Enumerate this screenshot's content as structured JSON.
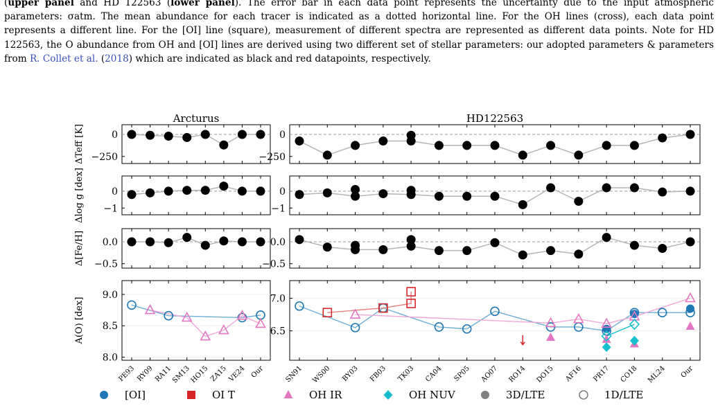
{
  "caption": {
    "lead_bold_1": "upper panel",
    "lead_text_1": " and HD 122563 (",
    "lead_bold_2": "lower panel",
    "lead_text_2": "). The error bar in each data point represents the uncertainty due to the input atmospheric parameters: σatm. The mean abundance for each tracer is indicated as a dotted horizontal line. For the OH lines (cross), each data point represents a different line. For the [OI] line (square), measurement of different spectra are represented as different data points. Note for HD 122563, the O abundance from OH and [OI] lines are derived using two different set of stellar parameters: our adopted parameters & parameters from ",
    "cite_author": "R. Collet et al.",
    "cite_paren_open": " (",
    "cite_year": "2018",
    "cite_paren_close": ")",
    "tail_text": " which are indicated as black and red datapoints, respectively."
  },
  "figure": {
    "panel_titles": [
      "Arcturus",
      "HD122563"
    ],
    "ylabels": [
      "ΔTeff [K]",
      "Δlog g [dex]",
      "Δ[Fe/H]",
      "A(O) [dex]"
    ],
    "left_categories": [
      "PE93",
      "RY09",
      "RA11",
      "SM13",
      "HO15",
      "ZA15",
      "VE24",
      "Our"
    ],
    "right_categories": [
      "SN91",
      "WS00",
      "BY03",
      "FB03",
      "TK03",
      "CA04",
      "SP05",
      "AO07",
      "RO14",
      "DO15",
      "AF16",
      "PR17",
      "CO18",
      "ML24",
      "Our"
    ],
    "yticks": {
      "teff": [
        "0",
        "−250"
      ],
      "logg": [
        "0",
        "−1"
      ],
      "feh": [
        "0.0",
        "−0.5"
      ],
      "left_abund": [
        "9.0",
        "8.5",
        "8.0"
      ],
      "right_abund": [
        "7.0",
        "6.5"
      ]
    },
    "legend": [
      {
        "label": "[OI]",
        "symbol": "circle-filled",
        "color": "#1f77b4"
      },
      {
        "label": "OI T",
        "symbol": "square-filled",
        "color": "#d62728"
      },
      {
        "label": "OH IR",
        "symbol": "triangle-filled",
        "color": "#e377c2"
      },
      {
        "label": "OH NUV",
        "symbol": "diamond-filled",
        "color": "#17becf"
      },
      {
        "label": "3D/LTE",
        "symbol": "circle-filled",
        "color": "#808080"
      },
      {
        "label": "1D/LTE",
        "symbol": "circle-open",
        "color": "#808080"
      }
    ]
  },
  "chart_data": [
    {
      "type": "line",
      "panel": "Arcturus ΔTeff",
      "categories": [
        "PE93",
        "RY09",
        "RA11",
        "SM13",
        "HO15",
        "ZA15",
        "VE24",
        "Our"
      ],
      "values": [
        0,
        -10,
        -20,
        -35,
        0,
        -120,
        0,
        0
      ],
      "ylim": [
        -330,
        110
      ]
    },
    {
      "type": "line",
      "panel": "HD122563 ΔTeff",
      "categories": [
        "SN91",
        "WS00",
        "BY03",
        "FB03",
        "TK03",
        "CA04",
        "SP05",
        "AO07",
        "RO14",
        "DO15",
        "AF16",
        "PR17",
        "CO18",
        "ML24",
        "Our"
      ],
      "values": [
        -75,
        -235,
        -125,
        -75,
        -75,
        -125,
        -125,
        -125,
        -235,
        -125,
        -235,
        -125,
        -125,
        -40,
        0
      ],
      "extra_points": [
        {
          "x": "TK03",
          "y": -10
        }
      ],
      "ylim": [
        -330,
        110
      ]
    },
    {
      "type": "line",
      "panel": "Arcturus Δlog g",
      "categories": [
        "PE93",
        "RY09",
        "RA11",
        "SM13",
        "HO15",
        "ZA15",
        "VE24",
        "Our"
      ],
      "values": [
        -0.2,
        -0.1,
        0.0,
        0.05,
        0.05,
        0.3,
        0.0,
        0.0
      ],
      "ylim": [
        -1.4,
        0.9
      ]
    },
    {
      "type": "line",
      "panel": "HD122563 Δlog g",
      "categories": [
        "SN91",
        "WS00",
        "BY03",
        "FB03",
        "TK03",
        "CA04",
        "SP05",
        "AO07",
        "RO14",
        "DO15",
        "AF16",
        "PR17",
        "CO18",
        "ML24",
        "Our"
      ],
      "values": [
        -0.2,
        -0.1,
        -0.3,
        -0.15,
        -0.2,
        -0.3,
        -0.3,
        -0.3,
        -0.8,
        0.2,
        -0.6,
        0.2,
        0.2,
        -0.05,
        0.0
      ],
      "extra_points": [
        {
          "x": "BY03",
          "y": 0.1
        },
        {
          "x": "TK03",
          "y": 0.05
        }
      ],
      "ylim": [
        -1.4,
        0.9
      ]
    },
    {
      "type": "line",
      "panel": "Arcturus Δ[Fe/H]",
      "categories": [
        "PE93",
        "RY09",
        "RA11",
        "SM13",
        "HO15",
        "ZA15",
        "VE24",
        "Our"
      ],
      "values": [
        0.0,
        0.0,
        -0.02,
        0.1,
        -0.08,
        0.02,
        0.0,
        0.0
      ],
      "ylim": [
        -0.6,
        0.3
      ]
    },
    {
      "type": "line",
      "panel": "HD122563 Δ[Fe/H]",
      "categories": [
        "SN91",
        "WS00",
        "BY03",
        "FB03",
        "TK03",
        "CA04",
        "SP05",
        "AO07",
        "RO14",
        "DO15",
        "AF16",
        "PR17",
        "CO18",
        "ML24",
        "Our"
      ],
      "values": [
        0.05,
        -0.12,
        -0.18,
        -0.18,
        -0.1,
        -0.2,
        -0.2,
        -0.02,
        -0.3,
        -0.2,
        -0.28,
        0.1,
        -0.08,
        -0.15,
        0.0
      ],
      "extra_points": [
        {
          "x": "BY03",
          "y": -0.08
        },
        {
          "x": "TK03",
          "y": 0.05
        }
      ],
      "ylim": [
        -0.6,
        0.3
      ]
    },
    {
      "type": "scatter",
      "panel": "Arcturus A(O)",
      "categories": [
        "PE93",
        "RY09",
        "RA11",
        "SM13",
        "HO15",
        "ZA15",
        "VE24",
        "Our"
      ],
      "ylim": [
        7.95,
        9.22
      ],
      "series": [
        {
          "symbol": "circle-open",
          "color": "#1f77b4",
          "points": [
            {
              "x": "PE93",
              "y": 8.83
            },
            {
              "x": "RA11",
              "y": 8.66
            },
            {
              "x": "VE24",
              "y": 8.63
            },
            {
              "x": "Our",
              "y": 8.67
            }
          ]
        },
        {
          "symbol": "triangle-open",
          "color": "#e377c2",
          "points": [
            {
              "x": "RY09",
              "y": 8.75
            },
            {
              "x": "SM13",
              "y": 8.63
            },
            {
              "x": "HO15",
              "y": 8.33
            },
            {
              "x": "ZA15",
              "y": 8.43
            },
            {
              "x": "VE24",
              "y": 8.66
            },
            {
              "x": "Our",
              "y": 8.53
            }
          ]
        }
      ]
    },
    {
      "type": "scatter",
      "panel": "HD122563 A(O)",
      "categories": [
        "SN91",
        "WS00",
        "BY03",
        "FB03",
        "TK03",
        "CA04",
        "SP05",
        "AO07",
        "RO14",
        "DO15",
        "AF16",
        "PR17",
        "CO18",
        "ML24",
        "Our"
      ],
      "ylim": [
        6.05,
        7.27
      ],
      "series": [
        {
          "symbol": "circle-open",
          "color": "#1f77b4",
          "points": [
            {
              "x": "SN91",
              "y": 6.88
            },
            {
              "x": "BY03",
              "y": 6.55
            },
            {
              "x": "FB03",
              "y": 6.85
            },
            {
              "x": "CA04",
              "y": 6.56
            },
            {
              "x": "SP05",
              "y": 6.53
            },
            {
              "x": "AO07",
              "y": 6.8
            },
            {
              "x": "DO15",
              "y": 6.56
            },
            {
              "x": "AF16",
              "y": 6.56
            },
            {
              "x": "PR17",
              "y": 6.5
            },
            {
              "x": "CO18",
              "y": 6.78
            },
            {
              "x": "ML24",
              "y": 6.78
            },
            {
              "x": "Our",
              "y": 6.78
            }
          ]
        },
        {
          "symbol": "circle-filled",
          "color": "#1f77b4",
          "points": [
            {
              "x": "PR17",
              "y": 6.53
            },
            {
              "x": "CO18",
              "y": 6.76
            },
            {
              "x": "Our",
              "y": 6.84
            }
          ]
        },
        {
          "symbol": "square-open",
          "color": "#d62728",
          "points": [
            {
              "x": "WS00",
              "y": 6.78
            },
            {
              "x": "FB03",
              "y": 6.85
            },
            {
              "x": "TK03",
              "y": 6.92
            },
            {
              "x": "TK03",
              "y": 7.1
            }
          ]
        },
        {
          "symbol": "triangle-open",
          "color": "#e377c2",
          "points": [
            {
              "x": "BY03",
              "y": 6.75
            },
            {
              "x": "DO15",
              "y": 6.62
            },
            {
              "x": "AF16",
              "y": 6.68
            },
            {
              "x": "PR17",
              "y": 6.61
            },
            {
              "x": "CO18",
              "y": 6.72
            },
            {
              "x": "Our",
              "y": 7.0
            }
          ]
        },
        {
          "symbol": "triangle-filled",
          "color": "#e377c2",
          "points": [
            {
              "x": "DO15",
              "y": 6.4
            },
            {
              "x": "PR17",
              "y": 6.37
            },
            {
              "x": "CO18",
              "y": 6.3
            },
            {
              "x": "Our",
              "y": 6.57
            }
          ]
        },
        {
          "symbol": "diamond-open",
          "color": "#17becf",
          "points": [
            {
              "x": "PR17",
              "y": 6.42
            },
            {
              "x": "CO18",
              "y": 6.6
            }
          ]
        },
        {
          "symbol": "diamond-filled",
          "color": "#17becf",
          "points": [
            {
              "x": "PR17",
              "y": 6.25
            },
            {
              "x": "CO18",
              "y": 6.35
            }
          ]
        },
        {
          "symbol": "upper-limit-arrow",
          "color": "#d62728",
          "points": [
            {
              "x": "RO14",
              "y": 6.33
            }
          ]
        }
      ]
    }
  ]
}
